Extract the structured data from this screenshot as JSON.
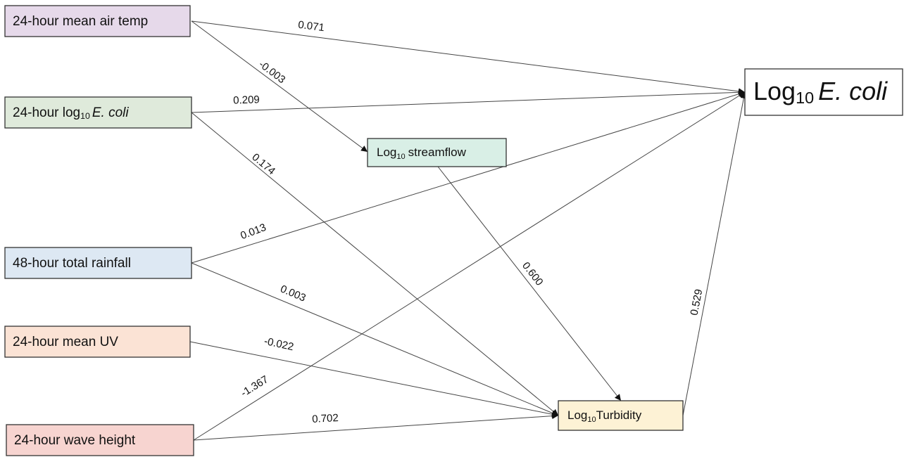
{
  "nodes": [
    {
      "label": [
        "24-hour mean air temp"
      ]
    },
    {
      "label": [
        "24-hour log",
        "10",
        "E. coli"
      ]
    },
    {
      "label": [
        "48-hour total rainfall"
      ]
    },
    {
      "label": [
        "24-hour mean UV"
      ]
    },
    {
      "label": [
        "24-hour wave height"
      ]
    },
    {
      "label": [
        "Log",
        "10",
        "streamflow"
      ]
    },
    {
      "label": [
        "Log",
        "10",
        "Turbidity"
      ]
    },
    {
      "label": [
        "Log",
        "10",
        "E. coli"
      ]
    }
  ],
  "edges": [
    {
      "label": "0.071"
    },
    {
      "label": "-0.003"
    },
    {
      "label": "0.209"
    },
    {
      "label": "0.174"
    },
    {
      "label": "0.013"
    },
    {
      "label": "0.003"
    },
    {
      "label": "-0.022"
    },
    {
      "label": "-1.367"
    },
    {
      "label": "0.702"
    },
    {
      "label": "0.600"
    },
    {
      "label": "0.529"
    }
  ]
}
